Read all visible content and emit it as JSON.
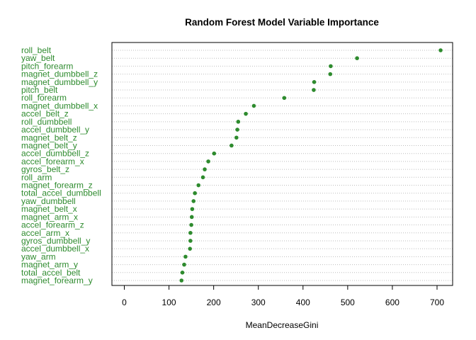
{
  "chart_data": {
    "type": "scatter",
    "title": "Random Forest Model Variable Importance",
    "xlabel": "MeanDecreaseGini",
    "ylabel": "",
    "xlim": [
      0,
      730
    ],
    "xticks": [
      0,
      100,
      200,
      300,
      400,
      500,
      600,
      700
    ],
    "grid": "dotted horizontal lines",
    "colors": {
      "points": "#2e8b2e",
      "labels": "#2e8b2e",
      "grid": "#bebebe",
      "axes": "#000000"
    },
    "categories": [
      "roll_belt",
      "yaw_belt",
      "pitch_forearm",
      "magnet_dumbbell_z",
      "magnet_dumbbell_y",
      "pitch_belt",
      "roll_forearm",
      "magnet_dumbbell_x",
      "accel_belt_z",
      "roll_dumbbell",
      "accel_dumbbell_y",
      "magnet_belt_z",
      "magnet_belt_y",
      "accel_dumbbell_z",
      "accel_forearm_x",
      "gyros_belt_z",
      "roll_arm",
      "magnet_forearm_z",
      "total_accel_dumbbell",
      "yaw_dumbbell",
      "magnet_belt_x",
      "magnet_arm_x",
      "accel_forearm_z",
      "accel_arm_x",
      "gyros_dumbbell_y",
      "accel_dumbbell_x",
      "yaw_arm",
      "magnet_arm_y",
      "total_accel_belt",
      "magnet_forearm_y"
    ],
    "values": [
      708,
      521,
      462,
      461,
      425,
      424,
      358,
      290,
      272,
      255,
      253,
      251,
      240,
      201,
      188,
      180,
      176,
      166,
      158,
      155,
      152,
      151,
      150,
      148,
      148,
      147,
      137,
      134,
      130,
      128
    ]
  }
}
